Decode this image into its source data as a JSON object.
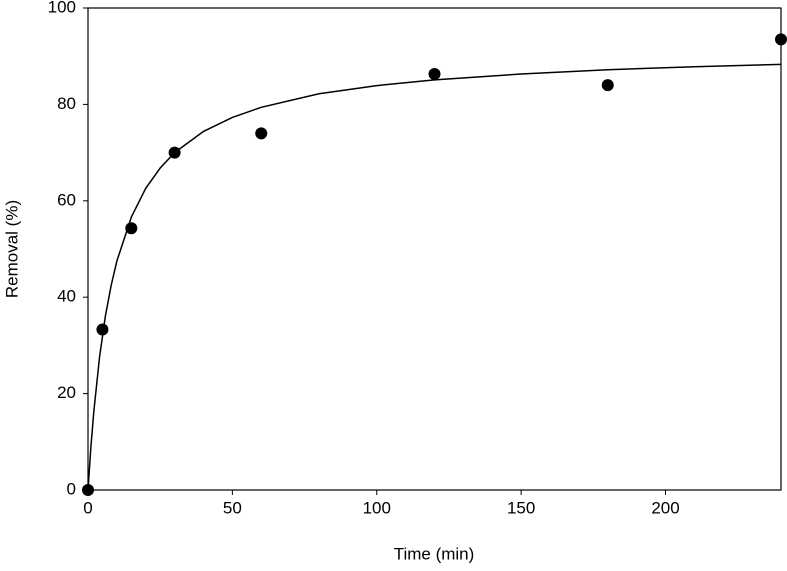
{
  "chart_data": {
    "type": "scatter",
    "x_label": "Time (min)",
    "y_label": "Removal (%)",
    "xlim": [
      0,
      240
    ],
    "xticks": [
      0,
      50,
      100,
      150,
      200
    ],
    "ylim": [
      0,
      100
    ],
    "yticks": [
      0,
      20,
      40,
      60,
      80,
      100
    ],
    "grid": false,
    "series": [
      {
        "style": "markers",
        "color": "#000000",
        "x": [
          0,
          5,
          15,
          30,
          60,
          120,
          180,
          240
        ],
        "values": [
          0,
          33.3,
          54.3,
          70,
          74,
          86.3,
          84,
          93.5
        ]
      },
      {
        "style": "line",
        "color": "#000000",
        "x": [
          0,
          1,
          2,
          4,
          6,
          8,
          10,
          15,
          20,
          25,
          30,
          40,
          50,
          60,
          80,
          100,
          120,
          150,
          180,
          210,
          240
        ],
        "values": [
          0,
          8.9,
          16.2,
          27.6,
          36.0,
          42.4,
          47.5,
          56.6,
          62.6,
          66.8,
          70.0,
          74.4,
          77.3,
          79.4,
          82.2,
          83.9,
          85.1,
          86.3,
          87.2,
          87.8,
          88.3
        ]
      }
    ]
  }
}
